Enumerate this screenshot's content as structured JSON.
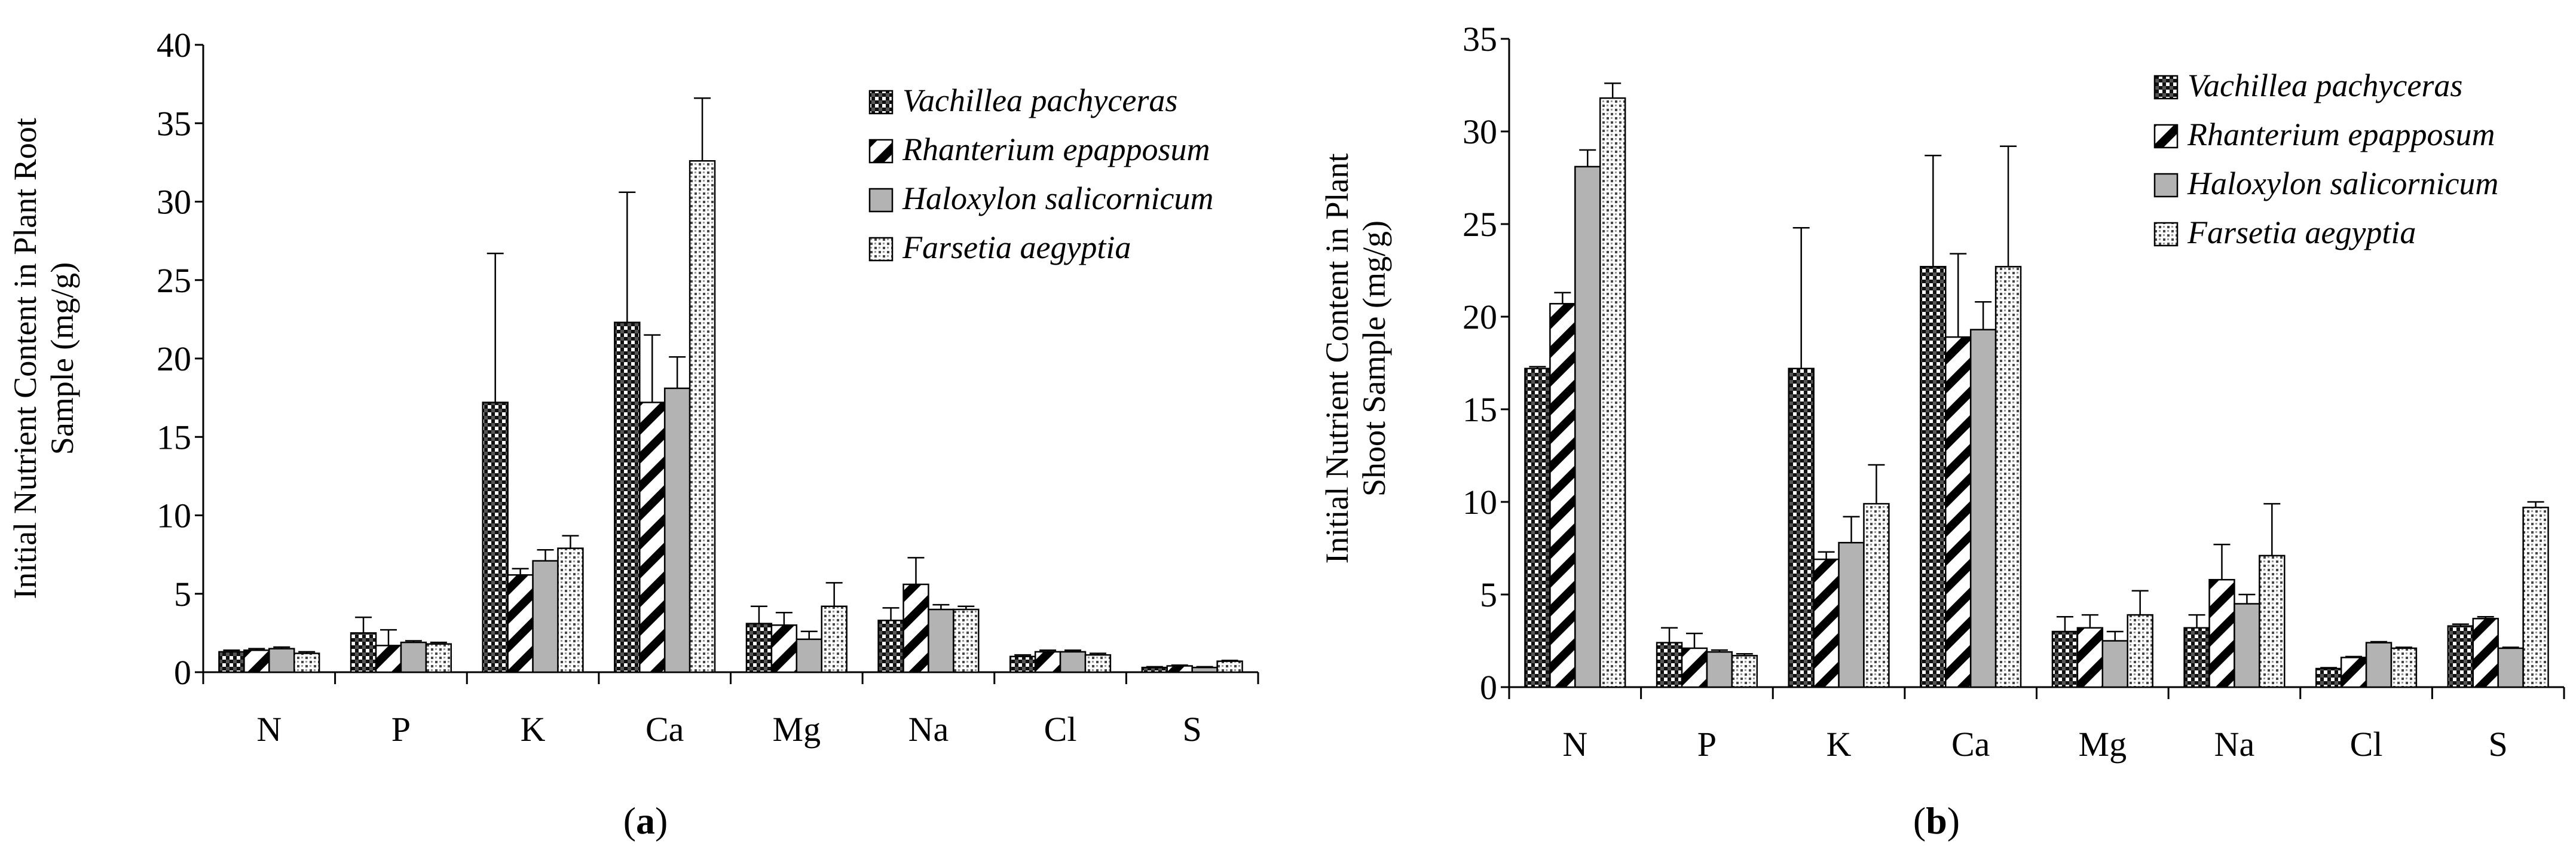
{
  "series_styles": [
    {
      "fill": "url(#pat-vach)"
    },
    {
      "fill": "url(#pat-rhan)"
    },
    {
      "fill": "#b3b3b3"
    },
    {
      "fill": "url(#pat-fars)"
    }
  ],
  "chart_data": [
    {
      "type": "bar",
      "panel_label": "a",
      "ylabel": "Initial Nutrient Content in Plant Root Sample (mg/g)",
      "ylabel_lines": [
        "Initial Nutrient Content in Plant Root",
        "Sample (mg/g)"
      ],
      "ylim": [
        0,
        40
      ],
      "yticks": [
        0,
        5,
        10,
        15,
        20,
        25,
        30,
        35,
        40
      ],
      "grid": false,
      "legend_position": "top-right",
      "categories": [
        "N",
        "P",
        "K",
        "Ca",
        "Mg",
        "Na",
        "Cl",
        "S"
      ],
      "series": [
        {
          "name": "Vachillea pachyceras",
          "values": [
            1.3,
            2.5,
            17.2,
            22.3,
            3.1,
            3.3,
            1.0,
            0.3
          ],
          "errors": [
            0.1,
            1.0,
            9.5,
            8.3,
            1.1,
            0.8,
            0.1,
            0.05
          ]
        },
        {
          "name": "Rhanterium epapposum",
          "values": [
            1.4,
            1.7,
            6.2,
            17.2,
            3.0,
            5.6,
            1.3,
            0.4
          ],
          "errors": [
            0.1,
            1.0,
            0.4,
            4.3,
            0.8,
            1.7,
            0.1,
            0.05
          ]
        },
        {
          "name": "Haloxylon salicornicum",
          "values": [
            1.5,
            1.9,
            7.1,
            18.1,
            2.1,
            4.0,
            1.3,
            0.3
          ],
          "errors": [
            0.1,
            0.1,
            0.7,
            2.0,
            0.5,
            0.3,
            0.1,
            0.05
          ]
        },
        {
          "name": "Farsetia aegyptia",
          "values": [
            1.2,
            1.8,
            7.9,
            32.6,
            4.2,
            4.0,
            1.1,
            0.7
          ],
          "errors": [
            0.1,
            0.1,
            0.8,
            4.0,
            1.5,
            0.2,
            0.1,
            0.05
          ]
        }
      ]
    },
    {
      "type": "bar",
      "panel_label": "b",
      "ylabel": "Initial Nutrient Content in Plant Shoot Sample (mg/g)",
      "ylabel_lines": [
        "Initial Nutrient Content in Plant",
        "Shoot Sample (mg/g)"
      ],
      "ylim": [
        0,
        35
      ],
      "yticks": [
        0,
        5,
        10,
        15,
        20,
        25,
        30,
        35
      ],
      "grid": false,
      "legend_position": "top-right",
      "categories": [
        "N",
        "P",
        "K",
        "Ca",
        "Mg",
        "Na",
        "Cl",
        "S"
      ],
      "series": [
        {
          "name": "Vachillea pachyceras",
          "values": [
            17.2,
            2.4,
            17.2,
            22.7,
            3.0,
            3.2,
            1.0,
            3.3
          ],
          "errors": [
            0.1,
            0.8,
            7.6,
            6.0,
            0.8,
            0.7,
            0.05,
            0.1
          ]
        },
        {
          "name": "Rhanterium epapposum",
          "values": [
            20.7,
            2.1,
            6.9,
            18.9,
            3.2,
            5.8,
            1.6,
            3.7
          ],
          "errors": [
            0.6,
            0.8,
            0.4,
            4.5,
            0.7,
            1.9,
            0.05,
            0.1
          ]
        },
        {
          "name": "Haloxylon salicornicum",
          "values": [
            28.1,
            1.9,
            7.8,
            19.3,
            2.5,
            4.5,
            2.4,
            2.1
          ],
          "errors": [
            0.9,
            0.1,
            1.4,
            1.5,
            0.5,
            0.5,
            0.05,
            0.05
          ]
        },
        {
          "name": "Farsetia aegyptia",
          "values": [
            31.8,
            1.7,
            9.9,
            22.7,
            3.9,
            7.1,
            2.1,
            9.7
          ],
          "errors": [
            0.8,
            0.1,
            2.1,
            6.5,
            1.3,
            2.8,
            0.05,
            0.3
          ]
        }
      ]
    }
  ]
}
